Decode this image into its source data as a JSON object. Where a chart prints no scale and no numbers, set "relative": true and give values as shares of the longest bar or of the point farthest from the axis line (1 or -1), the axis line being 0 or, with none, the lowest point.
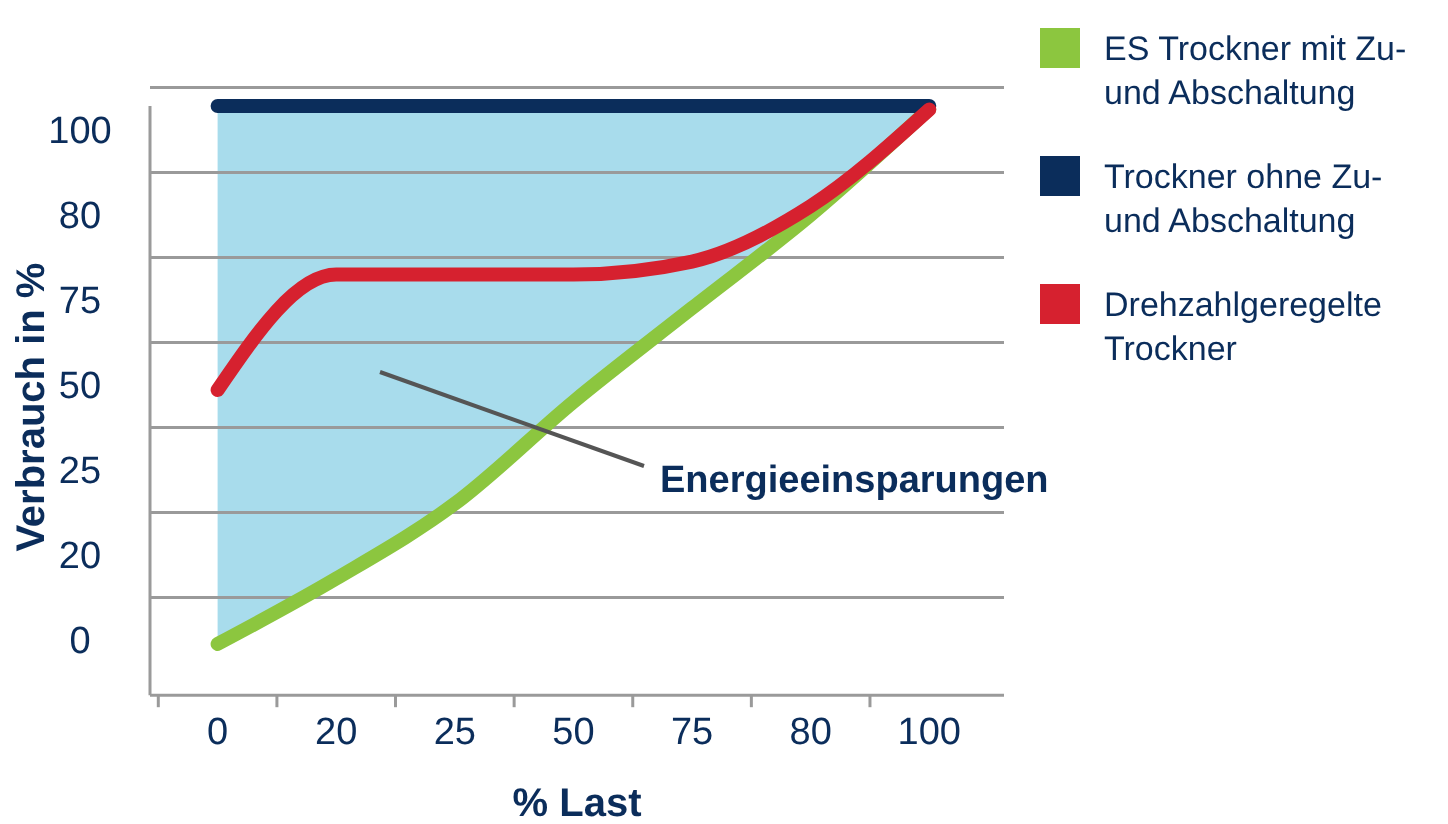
{
  "chart_data": {
    "type": "line",
    "xlabel": "% Last",
    "ylabel": "Verbrauch in %",
    "relative": true,
    "categories": [
      "0",
      "20",
      "25",
      "50",
      "75",
      "80",
      "100"
    ],
    "y_categories": [
      "100",
      "80",
      "75",
      "50",
      "25",
      "20",
      "0"
    ],
    "grid": "y",
    "legend": "right",
    "marker": "none",
    "line_style": "solid",
    "series": [
      {
        "name": "ES Trockner mit Zu- und Abschaltung",
        "color": "#8cc63f",
        "values": [
          0.087,
          0.198,
          0.325,
          0.498,
          0.657,
          0.815,
          0.995
        ]
      },
      {
        "name": "Trockner ohne Zu- und Abschaltung",
        "color": "#0b2d5b",
        "values": [
          1,
          1,
          1,
          1,
          1,
          1,
          1
        ],
        "lower": [
          0.087,
          0.198,
          0.325,
          0.498,
          0.657,
          0.815,
          0.995
        ],
        "upper": [
          1,
          1,
          1,
          1,
          1,
          1,
          1
        ]
      },
      {
        "name": "Drehzahlgeregelte Trockner",
        "color": "#d6212f",
        "values": [
          0.518,
          0.714,
          0.714,
          0.714,
          0.736,
          0.83,
          0.994
        ]
      }
    ],
    "annotations": [
      "Energieeinsparungen"
    ]
  }
}
